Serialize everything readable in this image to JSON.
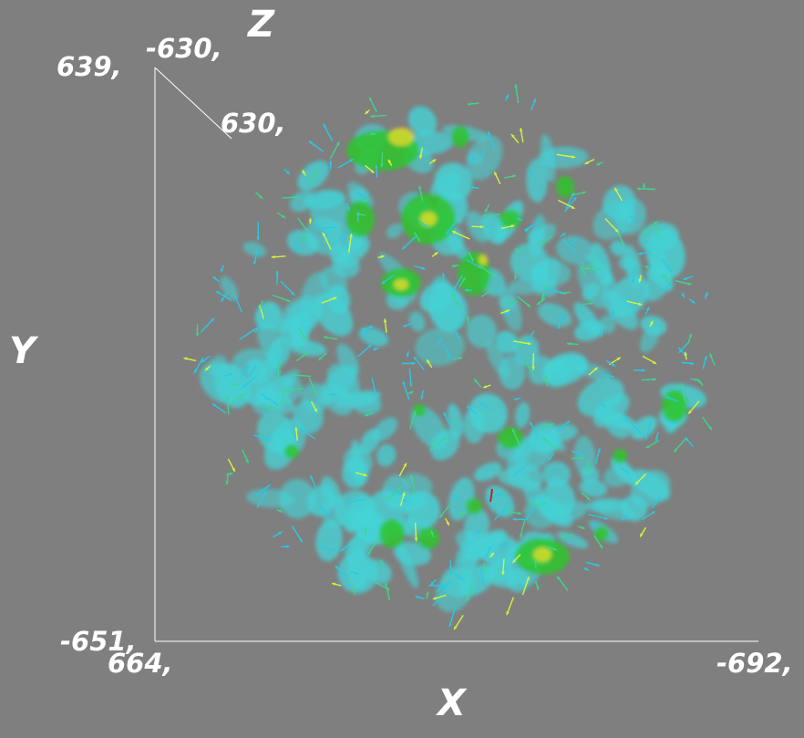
{
  "axes": {
    "x": {
      "title": "X",
      "min_label": "664,",
      "max_label": "-692,"
    },
    "y": {
      "title": "Y",
      "min_label": "-651,",
      "max_label": "639,"
    },
    "z": {
      "title": "Z",
      "min_label": "-630,",
      "max_label": "630,"
    }
  },
  "colors": {
    "background": "#7f7f7f",
    "axis_line": "#ffffff",
    "isosurface_outer": "#45d3d6",
    "isosurface_inner": "#2fc42a",
    "isosurface_core": "#d8dc2a",
    "vector_low": "#2ac9e6",
    "vector_mid": "#3ed68c",
    "vector_high": "#d6f23c",
    "vector_outlier": "#d11a1a"
  }
}
